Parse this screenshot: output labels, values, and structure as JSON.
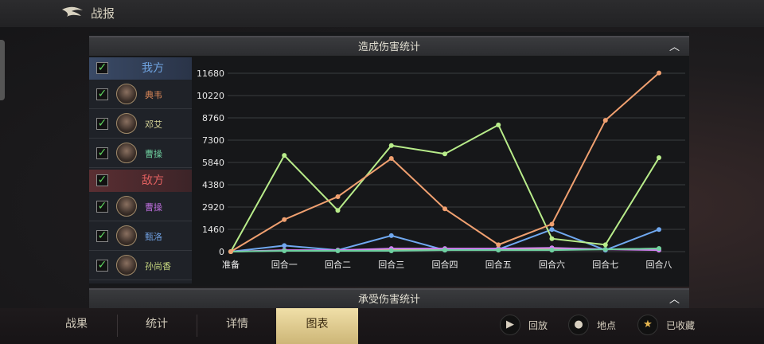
{
  "header": {
    "title": "战报"
  },
  "sections": {
    "dealt": "造成伤害统计",
    "taken": "承受伤害统计"
  },
  "groups": {
    "ally": {
      "label": "我方",
      "color": "#6fa3e0",
      "checked": true
    },
    "enemy": {
      "label": "敌方",
      "color": "#e06060",
      "checked": true
    }
  },
  "allies": [
    {
      "name": "典韦",
      "color": "#e08a5a",
      "checked": true
    },
    {
      "name": "邓艾",
      "color": "#d8d79a",
      "checked": true
    },
    {
      "name": "曹操",
      "color": "#6fd0a0",
      "checked": true
    }
  ],
  "enemies": [
    {
      "name": "曹操",
      "color": "#c070e0",
      "checked": true
    },
    {
      "name": "甄洛",
      "color": "#6f9fe0",
      "checked": true
    },
    {
      "name": "孙尚香",
      "color": "#c8d880",
      "checked": true
    }
  ],
  "tabs": [
    {
      "label": "战果"
    },
    {
      "label": "统计"
    },
    {
      "label": "详情"
    },
    {
      "label": "图表",
      "active": true
    }
  ],
  "actions": [
    {
      "label": "回放",
      "icon": "play-icon"
    },
    {
      "label": "地点",
      "icon": "location-pin-icon"
    },
    {
      "label": "已收藏",
      "icon": "star-icon"
    }
  ],
  "chart_data": {
    "type": "line",
    "categories": [
      "准备",
      "回合一",
      "回合二",
      "回合三",
      "回合四",
      "回合五",
      "回合六",
      "回合七",
      "回合八"
    ],
    "yticks": [
      0,
      1460,
      2920,
      4380,
      5840,
      7300,
      8760,
      10220,
      11680
    ],
    "ylim": [
      0,
      11680
    ],
    "grid": true,
    "series": [
      {
        "name": "典韦",
        "color": "#f0a070",
        "values": [
          0,
          2100,
          3600,
          6100,
          2800,
          450,
          1800,
          8600,
          11700
        ]
      },
      {
        "name": "邓艾",
        "color": "#b8ec8a",
        "values": [
          0,
          6300,
          2700,
          6950,
          6400,
          8300,
          850,
          450,
          6150
        ]
      },
      {
        "name": "曹操",
        "color": "#6fd0a0",
        "values": [
          0,
          50,
          50,
          50,
          100,
          100,
          100,
          150,
          200
        ]
      },
      {
        "name": "曹操",
        "color": "#d080f0",
        "values": [
          0,
          100,
          100,
          200,
          200,
          200,
          250,
          150,
          100
        ]
      },
      {
        "name": "甄洛",
        "color": "#70a8f0",
        "values": [
          0,
          400,
          100,
          1050,
          100,
          150,
          1450,
          100,
          1450
        ]
      },
      {
        "name": "孙尚香",
        "color": "#c8d880",
        "values": [
          0,
          80,
          80,
          100,
          120,
          150,
          150,
          150,
          200
        ]
      }
    ]
  }
}
